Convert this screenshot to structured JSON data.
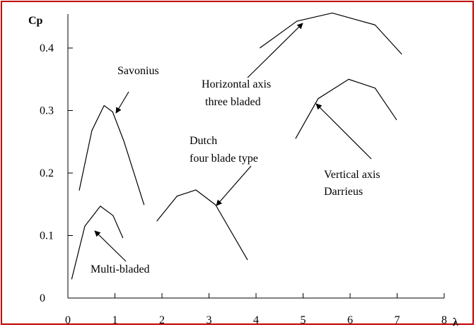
{
  "chart_data": {
    "type": "line",
    "y_label": "Cp",
    "x_label": "λ",
    "xlim": [
      0,
      8
    ],
    "xticks": [
      0,
      1,
      2,
      3,
      4,
      5,
      6,
      7,
      8
    ],
    "ylim": [
      0,
      0.45
    ],
    "yticks": [
      0,
      0.1,
      0.2,
      0.3,
      0.4
    ],
    "color": "#000000",
    "series": [
      {
        "name": "Savonius",
        "x": [
          0.24,
          0.51,
          0.77,
          0.95,
          1.19,
          1.62
        ],
        "values": [
          0.172,
          0.268,
          0.308,
          0.298,
          0.251,
          0.149
        ]
      },
      {
        "name": "Multi-bladed",
        "x": [
          0.08,
          0.36,
          0.69,
          0.96,
          1.17
        ],
        "values": [
          0.03,
          0.115,
          0.147,
          0.132,
          0.096
        ]
      },
      {
        "name": "Dutch four blade type",
        "x": [
          1.89,
          2.32,
          2.72,
          3.14,
          3.82
        ],
        "values": [
          0.123,
          0.163,
          0.173,
          0.149,
          0.061
        ]
      },
      {
        "name": "Horizontal axis three bladed",
        "x": [
          4.08,
          4.87,
          5.62,
          6.53,
          7.1
        ],
        "values": [
          0.4,
          0.443,
          0.456,
          0.437,
          0.39
        ]
      },
      {
        "name": "Vertical axis Darrieus",
        "x": [
          4.84,
          5.32,
          5.97,
          6.53,
          6.99
        ],
        "values": [
          0.255,
          0.319,
          0.35,
          0.336,
          0.285
        ]
      }
    ],
    "annotations": [
      "Savonius",
      "Horizontal axis",
      "three bladed",
      "Dutch",
      "four blade type",
      "Vertical axis",
      "Darrieus",
      "Multi-bladed"
    ]
  }
}
